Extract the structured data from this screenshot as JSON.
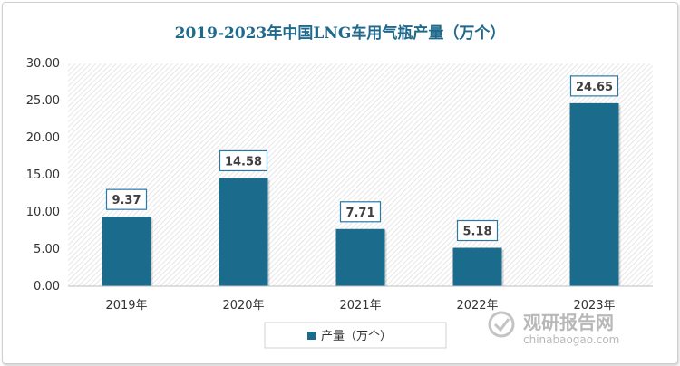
{
  "chart_data": {
    "type": "bar",
    "title": "2019-2023年中国LNG车用气瓶产量（万个）",
    "categories": [
      "2019年",
      "2020年",
      "2021年",
      "2022年",
      "2023年"
    ],
    "series": [
      {
        "name": "产量（万个）",
        "values": [
          9.37,
          14.58,
          7.71,
          5.18,
          24.65
        ]
      }
    ],
    "data_labels": [
      "9.37",
      "14.58",
      "7.71",
      "5.18",
      "24.65"
    ],
    "ylim": [
      0,
      30
    ],
    "yticks": [
      "0.00",
      "5.00",
      "10.00",
      "15.00",
      "20.00",
      "25.00",
      "30.00"
    ],
    "grid": false,
    "legend": "bottom",
    "colors": {
      "bar": "#1b6b8c",
      "title": "#1f6a8c",
      "label_border": "#2a7aa8"
    }
  },
  "watermark": {
    "name": "观研报告网",
    "url": "chinabaogao.com",
    "icon": "logo-icon"
  }
}
